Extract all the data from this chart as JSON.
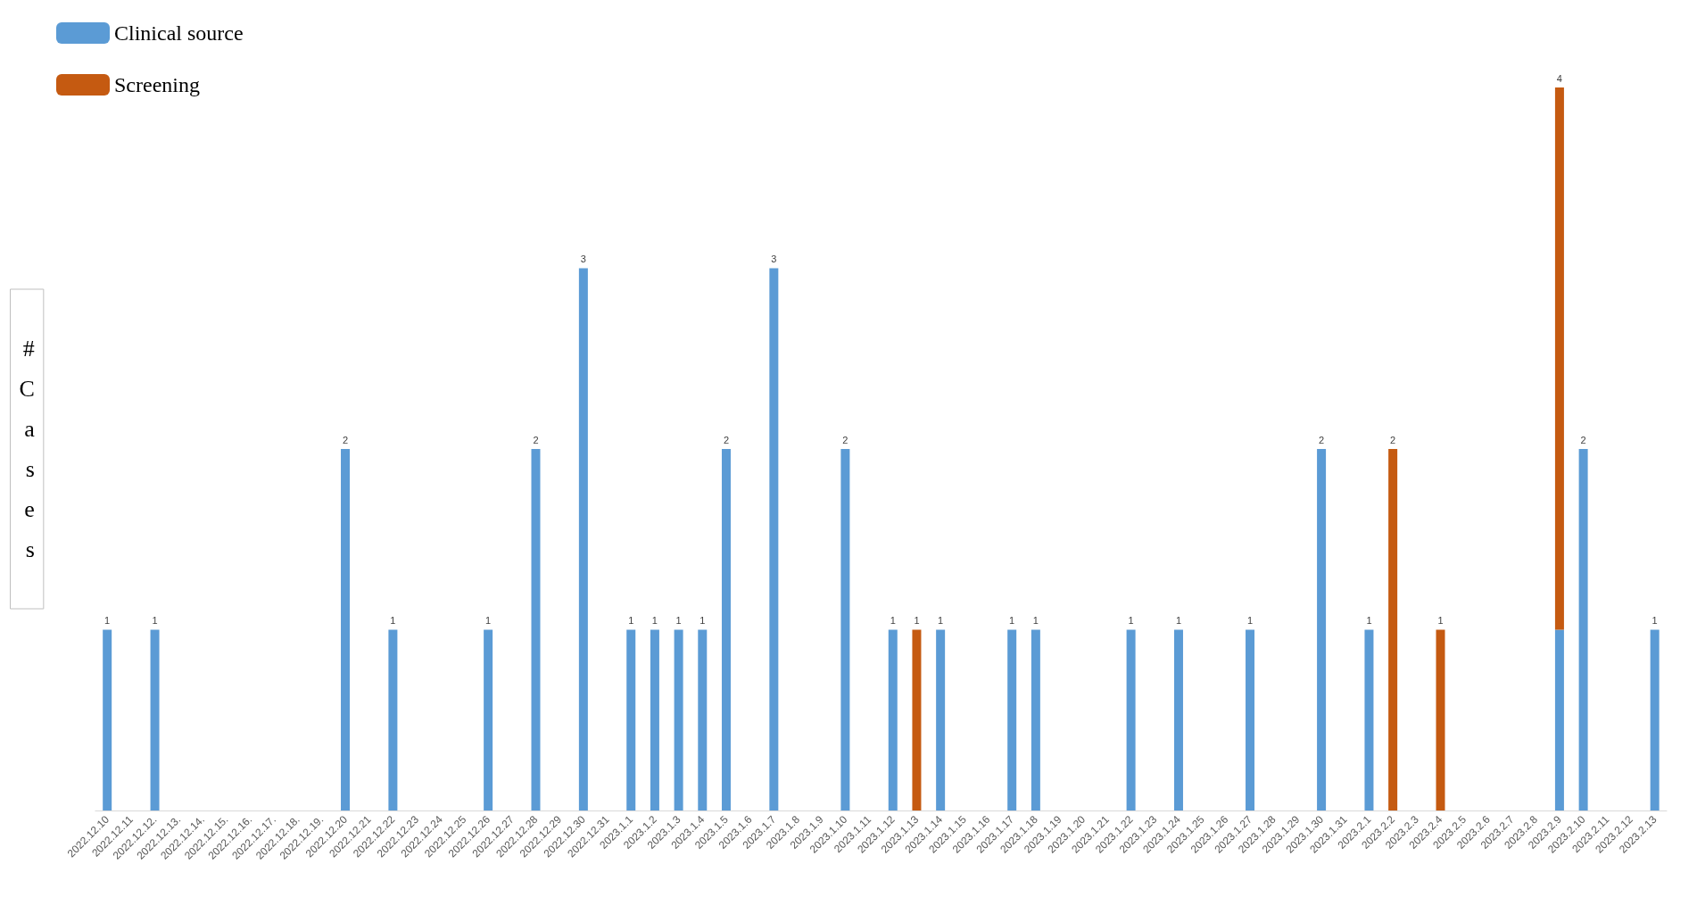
{
  "chart_data": {
    "type": "bar",
    "ylabel": "# Cases",
    "stacked": true,
    "legend": "top left",
    "grid": false,
    "tick_labels": "x",
    "ylim": [
      0,
      4
    ],
    "categories": [
      "2022.12.10",
      "2022.12.11",
      "2022.12.12.",
      "2022.12.13.",
      "2022.12.14.",
      "2022.12.15.",
      "2022.12.16.",
      "2022.12.17.",
      "2022.12.18.",
      "2022.12.19.",
      "2022.12.20",
      "2022.12.21",
      "2022.12.22",
      "2022.12.23",
      "2022.12.24",
      "2022.12.25",
      "2022.12.26",
      "2022.12.27",
      "2022.12.28",
      "2022.12.29",
      "2022.12.30",
      "2022.12.31",
      "2023.1.1",
      "2023.1.2",
      "2023.1.3",
      "2023.1.4",
      "2023.1.5",
      "2023.1.6",
      "2023.1.7",
      "2023.1.8",
      "2023.1.9",
      "2023.1.10",
      "2023.1.11",
      "2023.1.12",
      "2023.1.13",
      "2023.1.14",
      "2023.1.15",
      "2023.1.16",
      "2023.1.17",
      "2023.1.18",
      "2023.1.19",
      "2023.1.20",
      "2023.1.21",
      "2023.1.22",
      "2023.1.23",
      "2023.1.24",
      "2023.1.25",
      "2023.1.26",
      "2023.1.27",
      "2023.1.28",
      "2023.1.29",
      "2023.1.30",
      "2023.1.31",
      "2023.2.1",
      "2023.2.2",
      "2023.2.3",
      "2023.2.4",
      "2023.2.5",
      "2023.2.6",
      "2023.2.7",
      "2023.2.8",
      "2023.2.9",
      "2023.2.10",
      "2023.2.11",
      "2023.2.12",
      "2023.2.13"
    ],
    "series": [
      {
        "name": "Clinical source",
        "color": "#5b9bd5",
        "values": [
          1,
          null,
          1,
          null,
          null,
          null,
          null,
          null,
          null,
          null,
          2,
          null,
          1,
          null,
          null,
          null,
          1,
          null,
          2,
          null,
          3,
          null,
          1,
          1,
          1,
          1,
          2,
          null,
          3,
          null,
          null,
          2,
          null,
          1,
          null,
          1,
          null,
          null,
          1,
          1,
          null,
          null,
          null,
          1,
          null,
          1,
          null,
          null,
          1,
          null,
          null,
          2,
          null,
          1,
          null,
          null,
          null,
          null,
          null,
          null,
          null,
          1,
          2,
          null,
          null,
          1
        ],
        "value_labels": [
          "1",
          null,
          "1",
          null,
          null,
          null,
          null,
          null,
          null,
          null,
          "2",
          null,
          "1",
          null,
          null,
          null,
          "1",
          null,
          "2",
          null,
          "3",
          null,
          "1",
          "1",
          "1",
          "1",
          "2",
          null,
          "3",
          null,
          null,
          "2",
          null,
          "1",
          null,
          "1",
          null,
          null,
          "1",
          "1",
          null,
          null,
          null,
          "1",
          null,
          "1",
          null,
          null,
          "1",
          null,
          null,
          "2",
          null,
          "1",
          null,
          null,
          null,
          null,
          null,
          null,
          null,
          null,
          "2",
          null,
          null,
          "1"
        ]
      },
      {
        "name": "Screening",
        "color": "#c55a11",
        "values": [
          null,
          null,
          null,
          null,
          null,
          null,
          null,
          null,
          null,
          null,
          null,
          null,
          null,
          null,
          null,
          null,
          null,
          null,
          null,
          null,
          null,
          null,
          null,
          null,
          null,
          null,
          null,
          null,
          null,
          null,
          null,
          null,
          null,
          null,
          1,
          null,
          null,
          null,
          null,
          null,
          null,
          null,
          null,
          null,
          null,
          null,
          null,
          null,
          null,
          null,
          null,
          null,
          null,
          null,
          2,
          null,
          1,
          null,
          null,
          null,
          null,
          3,
          null,
          null,
          null,
          null
        ],
        "value_labels": [
          null,
          null,
          null,
          null,
          null,
          null,
          null,
          null,
          null,
          null,
          null,
          null,
          null,
          null,
          null,
          null,
          null,
          null,
          null,
          null,
          null,
          null,
          null,
          null,
          null,
          null,
          null,
          null,
          null,
          null,
          null,
          null,
          null,
          null,
          "1",
          null,
          null,
          null,
          null,
          null,
          null,
          null,
          null,
          null,
          null,
          null,
          null,
          null,
          null,
          null,
          null,
          null,
          null,
          null,
          "2",
          null,
          "1",
          null,
          null,
          null,
          null,
          null,
          null,
          null,
          null,
          null
        ]
      }
    ],
    "totals": [
      null,
      null,
      null,
      null,
      null,
      null,
      null,
      null,
      null,
      null,
      null,
      null,
      null,
      null,
      null,
      null,
      null,
      null,
      null,
      null,
      null,
      null,
      null,
      null,
      null,
      null,
      null,
      null,
      null,
      null,
      null,
      null,
      null,
      null,
      null,
      null,
      null,
      null,
      null,
      null,
      null,
      null,
      null,
      null,
      null,
      null,
      null,
      null,
      null,
      null,
      null,
      null,
      null,
      null,
      null,
      null,
      null,
      null,
      null,
      null,
      null,
      "4",
      null,
      null,
      null,
      null
    ]
  }
}
